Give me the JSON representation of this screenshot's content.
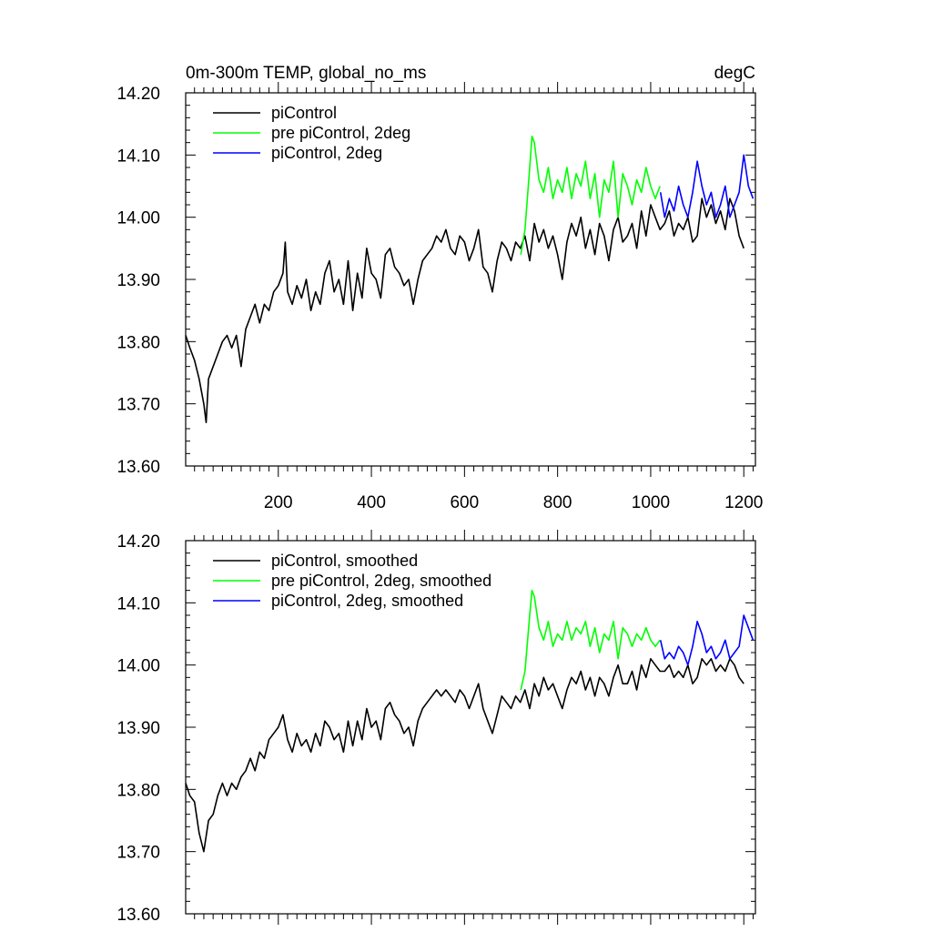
{
  "chart_data": [
    {
      "type": "line",
      "title": "0m-300m TEMP, global_no_ms",
      "units": "degC",
      "xlabel": "",
      "ylabel": "",
      "xlim": [
        1,
        1225
      ],
      "ylim": [
        13.6,
        14.2
      ],
      "x_ticks": [
        200,
        400,
        600,
        800,
        1000,
        1200
      ],
      "x_tick_labels": [
        "200",
        "400",
        "600",
        "800",
        "1000",
        "1200"
      ],
      "y_ticks": [
        13.6,
        13.7,
        13.8,
        13.9,
        14.0,
        14.1,
        14.2
      ],
      "y_tick_labels": [
        "13.60",
        "13.70",
        "13.80",
        "13.90",
        "14.00",
        "14.10",
        "14.20"
      ],
      "legend_position": "top-left",
      "series": [
        {
          "name": "piControl",
          "color": "#000000",
          "x": [
            1,
            10,
            20,
            30,
            40,
            45,
            50,
            60,
            70,
            80,
            90,
            100,
            110,
            120,
            130,
            140,
            150,
            160,
            170,
            180,
            190,
            200,
            210,
            215,
            220,
            230,
            240,
            250,
            260,
            270,
            280,
            290,
            300,
            310,
            320,
            330,
            340,
            350,
            360,
            370,
            380,
            390,
            400,
            410,
            420,
            430,
            440,
            450,
            460,
            470,
            480,
            490,
            500,
            510,
            520,
            530,
            540,
            550,
            560,
            570,
            580,
            590,
            600,
            610,
            620,
            630,
            640,
            650,
            660,
            670,
            680,
            690,
            700,
            710,
            720,
            730,
            740,
            750,
            760,
            770,
            780,
            790,
            800,
            810,
            820,
            830,
            840,
            850,
            860,
            870,
            880,
            890,
            900,
            910,
            920,
            930,
            940,
            950,
            960,
            970,
            980,
            990,
            1000,
            1010,
            1020,
            1030,
            1040,
            1050,
            1060,
            1070,
            1080,
            1090,
            1100,
            1110,
            1120,
            1130,
            1140,
            1150,
            1160,
            1170,
            1180,
            1190,
            1200
          ],
          "values": [
            13.81,
            13.79,
            13.77,
            13.74,
            13.7,
            13.67,
            13.74,
            13.76,
            13.78,
            13.8,
            13.81,
            13.79,
            13.81,
            13.76,
            13.82,
            13.84,
            13.86,
            13.83,
            13.86,
            13.85,
            13.88,
            13.89,
            13.91,
            13.96,
            13.88,
            13.86,
            13.89,
            13.87,
            13.9,
            13.85,
            13.88,
            13.86,
            13.91,
            13.93,
            13.88,
            13.9,
            13.86,
            13.93,
            13.85,
            13.91,
            13.87,
            13.95,
            13.91,
            13.9,
            13.87,
            13.94,
            13.95,
            13.92,
            13.91,
            13.89,
            13.9,
            13.86,
            13.9,
            13.93,
            13.94,
            13.95,
            13.97,
            13.96,
            13.98,
            13.95,
            13.94,
            13.97,
            13.96,
            13.93,
            13.95,
            13.98,
            13.92,
            13.91,
            13.88,
            13.93,
            13.96,
            13.95,
            13.93,
            13.96,
            13.95,
            13.97,
            13.93,
            13.99,
            13.96,
            13.98,
            13.95,
            13.97,
            13.94,
            13.9,
            13.96,
            13.99,
            13.97,
            14.0,
            13.95,
            13.98,
            13.94,
            13.99,
            13.97,
            13.93,
            13.98,
            14.0,
            13.96,
            13.97,
            13.99,
            13.95,
            14.01,
            13.97,
            14.02,
            14.0,
            13.98,
            13.99,
            14.01,
            13.97,
            13.99,
            13.98,
            14.0,
            13.96,
            13.97,
            14.03,
            14.0,
            14.02,
            13.99,
            14.01,
            13.98,
            14.03,
            14.01,
            13.97,
            13.95
          ]
        },
        {
          "name": "pre piControl, 2deg",
          "color": "#00ff00",
          "x": [
            721,
            730,
            740,
            745,
            750,
            760,
            770,
            780,
            790,
            800,
            810,
            820,
            830,
            840,
            850,
            860,
            870,
            880,
            890,
            900,
            910,
            920,
            930,
            940,
            950,
            960,
            970,
            980,
            990,
            1000,
            1010,
            1020
          ],
          "values": [
            13.94,
            13.98,
            14.08,
            14.13,
            14.12,
            14.06,
            14.04,
            14.08,
            14.03,
            14.06,
            14.04,
            14.08,
            14.03,
            14.07,
            14.05,
            14.09,
            14.03,
            14.07,
            14.0,
            14.06,
            14.04,
            14.09,
            14.0,
            14.07,
            14.05,
            14.02,
            14.06,
            14.04,
            14.08,
            14.05,
            14.03,
            14.05
          ]
        },
        {
          "name": "piControl, 2deg",
          "color": "#0000ff",
          "x": [
            1021,
            1030,
            1040,
            1050,
            1060,
            1070,
            1080,
            1090,
            1100,
            1110,
            1120,
            1130,
            1140,
            1150,
            1160,
            1170,
            1180,
            1190,
            1200,
            1210,
            1220
          ],
          "values": [
            14.04,
            14.0,
            14.03,
            14.01,
            14.05,
            14.02,
            14.0,
            14.04,
            14.09,
            14.05,
            14.02,
            14.04,
            14.0,
            14.02,
            14.05,
            14.0,
            14.02,
            14.04,
            14.1,
            14.05,
            14.03
          ]
        }
      ]
    },
    {
      "type": "line",
      "title": "",
      "xlabel": "",
      "ylabel": "",
      "xlim": [
        1,
        1225
      ],
      "ylim": [
        13.6,
        14.2
      ],
      "x_ticks": [
        200,
        400,
        600,
        800,
        1000,
        1200
      ],
      "x_tick_labels": [],
      "y_ticks": [
        13.6,
        13.7,
        13.8,
        13.9,
        14.0,
        14.1,
        14.2
      ],
      "y_tick_labels": [
        "13.60",
        "13.70",
        "13.80",
        "13.90",
        "14.00",
        "14.10",
        "14.20"
      ],
      "legend_position": "top-left",
      "series": [
        {
          "name": "piControl, smoothed",
          "color": "#000000",
          "x": [
            1,
            10,
            20,
            30,
            40,
            50,
            60,
            70,
            80,
            90,
            100,
            110,
            120,
            130,
            140,
            150,
            160,
            170,
            180,
            190,
            200,
            210,
            220,
            230,
            240,
            250,
            260,
            270,
            280,
            290,
            300,
            310,
            320,
            330,
            340,
            350,
            360,
            370,
            380,
            390,
            400,
            410,
            420,
            430,
            440,
            450,
            460,
            470,
            480,
            490,
            500,
            510,
            520,
            530,
            540,
            550,
            560,
            570,
            580,
            590,
            600,
            610,
            620,
            630,
            640,
            650,
            660,
            670,
            680,
            690,
            700,
            710,
            720,
            730,
            740,
            750,
            760,
            770,
            780,
            790,
            800,
            810,
            820,
            830,
            840,
            850,
            860,
            870,
            880,
            890,
            900,
            910,
            920,
            930,
            940,
            950,
            960,
            970,
            980,
            990,
            1000,
            1010,
            1020,
            1030,
            1040,
            1050,
            1060,
            1070,
            1080,
            1090,
            1100,
            1110,
            1120,
            1130,
            1140,
            1150,
            1160,
            1170,
            1180,
            1190,
            1200
          ],
          "values": [
            13.81,
            13.79,
            13.78,
            13.73,
            13.7,
            13.75,
            13.76,
            13.79,
            13.81,
            13.79,
            13.81,
            13.8,
            13.82,
            13.83,
            13.85,
            13.83,
            13.86,
            13.85,
            13.88,
            13.89,
            13.9,
            13.92,
            13.88,
            13.86,
            13.89,
            13.87,
            13.88,
            13.86,
            13.89,
            13.87,
            13.91,
            13.9,
            13.88,
            13.89,
            13.86,
            13.91,
            13.87,
            13.91,
            13.88,
            13.93,
            13.9,
            13.91,
            13.88,
            13.93,
            13.94,
            13.92,
            13.91,
            13.89,
            13.9,
            13.87,
            13.91,
            13.93,
            13.94,
            13.95,
            13.96,
            13.95,
            13.96,
            13.95,
            13.94,
            13.96,
            13.95,
            13.93,
            13.95,
            13.97,
            13.93,
            13.91,
            13.89,
            13.92,
            13.95,
            13.94,
            13.93,
            13.95,
            13.94,
            13.96,
            13.93,
            13.97,
            13.95,
            13.98,
            13.96,
            13.97,
            13.95,
            13.93,
            13.96,
            13.98,
            13.97,
            13.99,
            13.96,
            13.98,
            13.95,
            13.98,
            13.97,
            13.95,
            13.98,
            14.0,
            13.97,
            13.97,
            13.99,
            13.96,
            14.0,
            13.98,
            14.01,
            14.0,
            13.99,
            13.99,
            14.0,
            13.98,
            13.99,
            13.98,
            14.0,
            13.97,
            13.98,
            14.01,
            14.0,
            14.01,
            13.99,
            14.0,
            13.99,
            14.01,
            14.0,
            13.98,
            13.97
          ]
        },
        {
          "name": "pre piControl, 2deg, smoothed",
          "color": "#00ff00",
          "x": [
            721,
            730,
            740,
            745,
            750,
            760,
            770,
            780,
            790,
            800,
            810,
            820,
            830,
            840,
            850,
            860,
            870,
            880,
            890,
            900,
            910,
            920,
            930,
            940,
            950,
            960,
            970,
            980,
            990,
            1000,
            1010,
            1020
          ],
          "values": [
            13.96,
            13.99,
            14.08,
            14.12,
            14.11,
            14.06,
            14.04,
            14.07,
            14.03,
            14.05,
            14.04,
            14.07,
            14.04,
            14.06,
            14.05,
            14.07,
            14.03,
            14.06,
            14.02,
            14.05,
            14.04,
            14.07,
            14.01,
            14.06,
            14.05,
            14.03,
            14.05,
            14.04,
            14.06,
            14.04,
            14.03,
            14.04
          ]
        },
        {
          "name": "piControl, 2deg, smoothed",
          "color": "#0000ff",
          "x": [
            1021,
            1030,
            1040,
            1050,
            1060,
            1070,
            1080,
            1090,
            1100,
            1110,
            1120,
            1130,
            1140,
            1150,
            1160,
            1170,
            1180,
            1190,
            1200,
            1210,
            1220
          ],
          "values": [
            14.04,
            14.01,
            14.02,
            14.01,
            14.03,
            14.02,
            14.0,
            14.03,
            14.07,
            14.05,
            14.02,
            14.03,
            14.01,
            14.02,
            14.04,
            14.01,
            14.02,
            14.03,
            14.08,
            14.06,
            14.04
          ]
        }
      ]
    }
  ]
}
